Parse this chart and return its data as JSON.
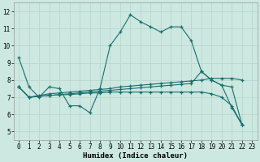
{
  "xlabel": "Humidex (Indice chaleur)",
  "bg_color": "#cce8e0",
  "grid_color": "#b8d8d0",
  "line_color": "#1a6e6e",
  "xlim": [
    -0.5,
    23.5
  ],
  "ylim": [
    4.5,
    12.5
  ],
  "yticks": [
    5,
    6,
    7,
    8,
    9,
    10,
    11,
    12
  ],
  "xticks": [
    0,
    1,
    2,
    3,
    4,
    5,
    6,
    7,
    8,
    9,
    10,
    11,
    12,
    13,
    14,
    15,
    16,
    17,
    18,
    19,
    20,
    21,
    22,
    23
  ],
  "lines": [
    {
      "x": [
        0,
        1,
        2,
        3,
        4,
        5,
        6,
        7,
        8,
        9,
        10,
        11,
        12,
        13,
        14,
        15,
        16,
        17,
        18,
        19,
        20,
        21,
        22
      ],
      "y": [
        9.3,
        7.6,
        7.0,
        7.6,
        7.5,
        6.5,
        6.5,
        6.1,
        7.5,
        10.0,
        10.8,
        11.8,
        11.4,
        11.1,
        10.8,
        11.1,
        11.1,
        10.3,
        8.5,
        8.0,
        7.7,
        6.4,
        5.4
      ]
    },
    {
      "x": [
        0,
        1,
        2,
        3,
        4,
        5,
        6,
        7,
        8,
        9,
        10,
        11,
        12,
        13,
        14,
        15,
        16,
        17,
        18,
        19,
        20,
        21,
        22
      ],
      "y": [
        7.6,
        7.0,
        7.1,
        7.2,
        7.25,
        7.3,
        7.35,
        7.4,
        7.45,
        7.5,
        7.6,
        7.65,
        7.7,
        7.75,
        7.8,
        7.85,
        7.9,
        7.95,
        8.0,
        8.1,
        8.1,
        8.1,
        8.0
      ]
    },
    {
      "x": [
        0,
        1,
        2,
        3,
        4,
        5,
        6,
        7,
        8,
        9,
        10,
        11,
        12,
        13,
        14,
        15,
        16,
        17,
        18,
        19,
        20,
        21,
        22
      ],
      "y": [
        7.6,
        7.0,
        7.05,
        7.1,
        7.15,
        7.2,
        7.25,
        7.3,
        7.35,
        7.4,
        7.45,
        7.5,
        7.55,
        7.6,
        7.65,
        7.7,
        7.75,
        7.8,
        8.5,
        8.0,
        7.7,
        7.6,
        5.4
      ]
    },
    {
      "x": [
        0,
        1,
        2,
        3,
        4,
        5,
        6,
        7,
        8,
        9,
        10,
        11,
        12,
        13,
        14,
        15,
        16,
        17,
        18,
        19,
        20,
        21,
        22
      ],
      "y": [
        7.6,
        7.0,
        7.05,
        7.1,
        7.15,
        7.15,
        7.2,
        7.25,
        7.25,
        7.3,
        7.3,
        7.3,
        7.3,
        7.3,
        7.3,
        7.3,
        7.3,
        7.3,
        7.3,
        7.2,
        7.0,
        6.5,
        5.4
      ]
    }
  ]
}
